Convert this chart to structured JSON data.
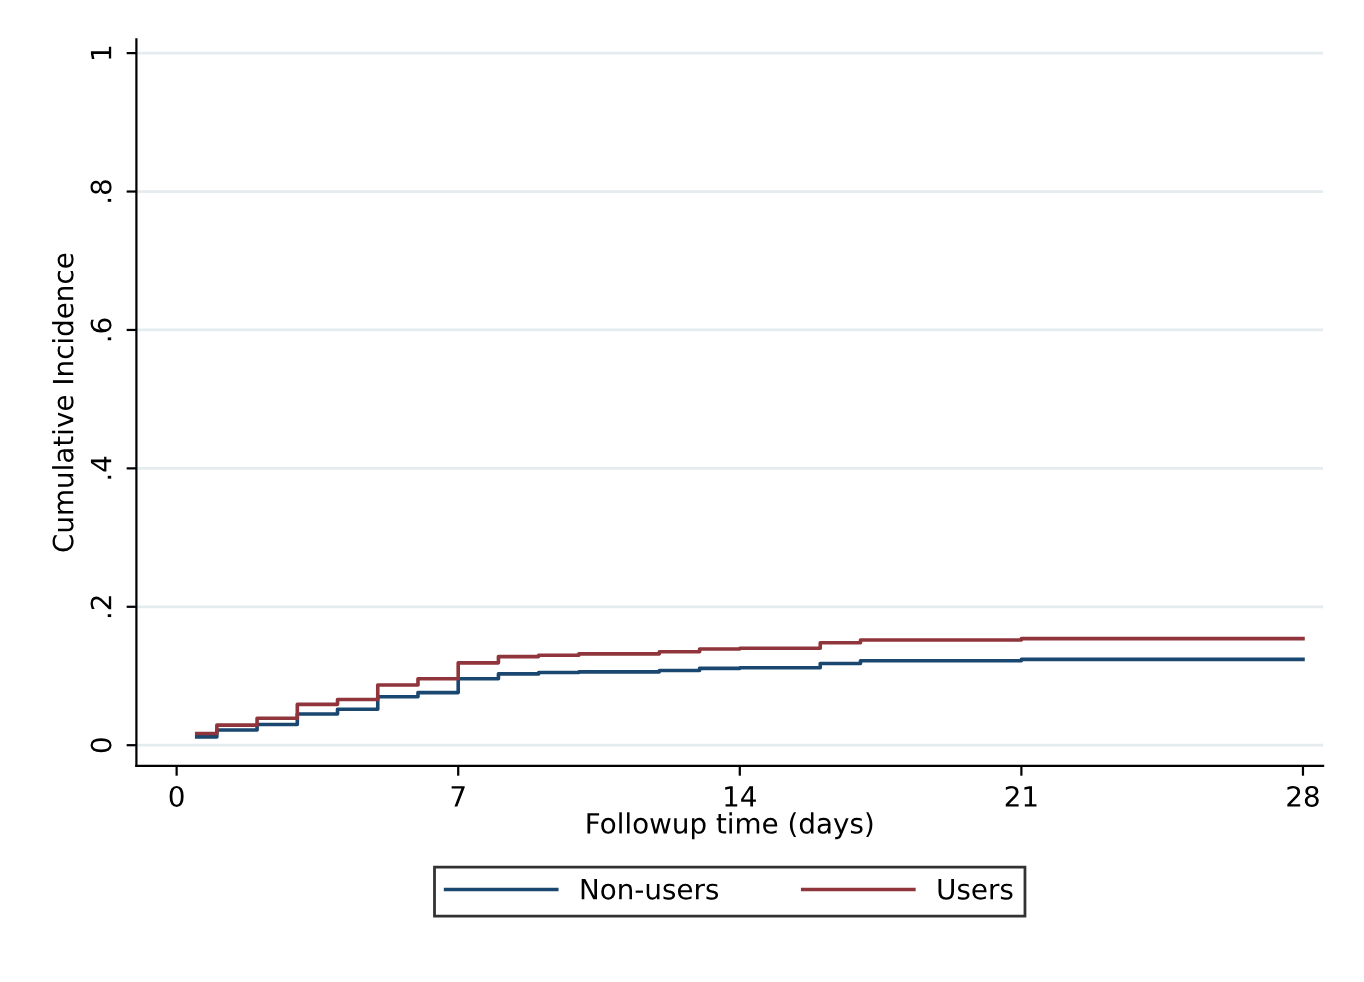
{
  "chart_data": {
    "type": "step",
    "xlabel": "Followup time (days)",
    "ylabel": "Cumulative Incidence",
    "xlim": [
      -1,
      28.5
    ],
    "xticks": [
      0,
      7,
      14,
      21,
      28
    ],
    "ylim": [
      -0.03,
      1.02
    ],
    "yticks": [
      {
        "value": 0,
        "label": "0"
      },
      {
        "value": 0.2,
        "label": ".2"
      },
      {
        "value": 0.4,
        "label": ".4"
      },
      {
        "value": 0.6,
        "label": ".6"
      },
      {
        "value": 0.8,
        "label": ".8"
      },
      {
        "value": 1,
        "label": "1"
      }
    ],
    "grid": "y",
    "legend": "bottom",
    "line_style": "solid",
    "marker": "none",
    "series": [
      {
        "name": "Non-users",
        "color": "#1a476f",
        "x": [
          0.5,
          1,
          2,
          3,
          4,
          5,
          6,
          7,
          8,
          9,
          10,
          12,
          13,
          14,
          16,
          17,
          21,
          28
        ],
        "values": [
          0.012,
          0.022,
          0.03,
          0.045,
          0.052,
          0.07,
          0.076,
          0.096,
          0.103,
          0.105,
          0.106,
          0.108,
          0.111,
          0.112,
          0.118,
          0.122,
          0.124,
          0.124
        ]
      },
      {
        "name": "Users",
        "color": "#90353b",
        "x": [
          0.5,
          1,
          2,
          3,
          4,
          5,
          6,
          7,
          8,
          9,
          10,
          12,
          13,
          14,
          16,
          17,
          21,
          28
        ],
        "values": [
          0.017,
          0.029,
          0.039,
          0.059,
          0.066,
          0.087,
          0.096,
          0.119,
          0.128,
          0.13,
          0.132,
          0.135,
          0.139,
          0.14,
          0.148,
          0.152,
          0.154,
          0.154
        ]
      }
    ]
  }
}
